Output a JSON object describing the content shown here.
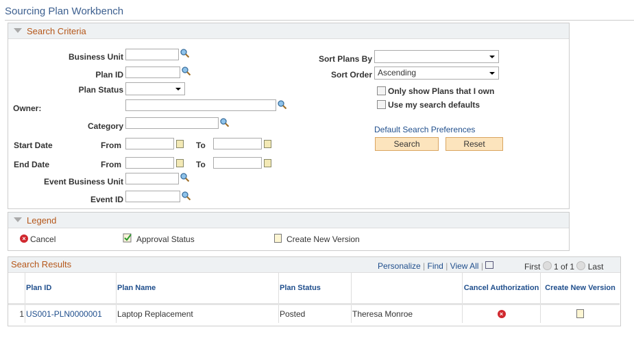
{
  "page": {
    "title": "Sourcing Plan Workbench"
  },
  "search_criteria": {
    "header": "Search Criteria",
    "business_unit": {
      "label": "Business Unit",
      "value": ""
    },
    "plan_id": {
      "label": "Plan ID",
      "value": ""
    },
    "plan_status": {
      "label": "Plan Status",
      "value": ""
    },
    "owner": {
      "label": "Owner:",
      "value": ""
    },
    "category": {
      "label": "Category",
      "value": ""
    },
    "start_date": {
      "label": "Start Date",
      "from_label": "From",
      "to_label": "To"
    },
    "end_date": {
      "label": "End Date",
      "from_label": "From",
      "to_label": "To"
    },
    "event_business_unit": {
      "label": "Event Business Unit",
      "value": ""
    },
    "event_id": {
      "label": "Event ID",
      "value": ""
    },
    "sort_plans_by": {
      "label": "Sort Plans By",
      "value": ""
    },
    "sort_order": {
      "label": "Sort Order",
      "value": "Ascending"
    },
    "only_my_plans": {
      "label": "Only show Plans that I own",
      "checked": false
    },
    "use_defaults": {
      "label": "Use my search defaults",
      "checked": false
    },
    "default_prefs_link": "Default Search Preferences",
    "search_button": "Search",
    "reset_button": "Reset"
  },
  "legend": {
    "header": "Legend",
    "items": [
      {
        "icon": "cancel-icon",
        "label": "Cancel"
      },
      {
        "icon": "approval-status-icon",
        "label": "Approval Status"
      },
      {
        "icon": "document-icon",
        "label": "Create New Version"
      }
    ]
  },
  "results": {
    "header": "Search Results",
    "personalize": "Personalize",
    "find": "Find",
    "view_all": "View All",
    "first": "First",
    "page_info": "1 of 1",
    "last": "Last",
    "columns": [
      "Plan ID",
      "Plan Name",
      "Plan Status",
      "",
      "Cancel Authorization",
      "Create New Version"
    ],
    "rows": [
      {
        "num": "1",
        "plan_id": "US001-PLN0000001",
        "plan_name": "Laptop Replacement",
        "status": "Posted",
        "owner": "Theresa Monroe"
      }
    ]
  }
}
